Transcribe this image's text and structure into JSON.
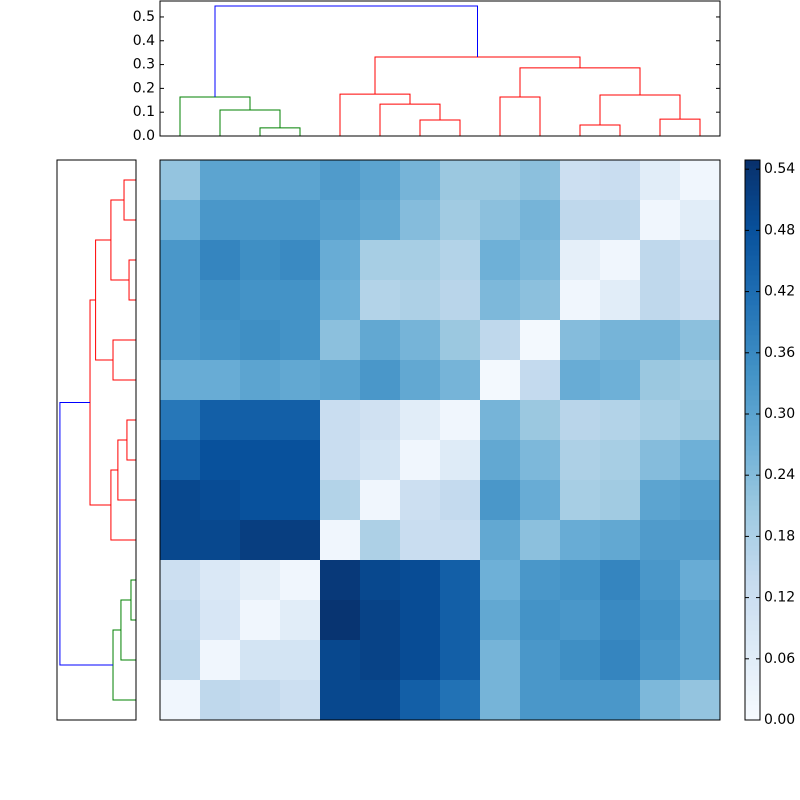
{
  "chart_data": [
    {
      "type": "heatmap",
      "colormap": "Blues",
      "clim": [
        0,
        0.549
      ],
      "cticks": [
        {
          "value": 0,
          "label": "0.00"
        },
        {
          "value": 0.06,
          "label": "0.06"
        },
        {
          "value": 0.12,
          "label": "0.12"
        },
        {
          "value": 0.18,
          "label": "0.18"
        },
        {
          "value": 0.24,
          "label": "0.24"
        },
        {
          "value": 0.3,
          "label": "0.30"
        },
        {
          "value": 0.36,
          "label": "0.36"
        },
        {
          "value": 0.42,
          "label": "0.42"
        },
        {
          "value": 0.48,
          "label": "0.48"
        },
        {
          "value": 0.54,
          "label": "0.54"
        }
      ],
      "matrix": [
        [
          0.22,
          0.3,
          0.3,
          0.3,
          0.32,
          0.3,
          0.26,
          0.21,
          0.21,
          0.23,
          0.12,
          0.13,
          0.06,
          0.02
        ],
        [
          0.27,
          0.33,
          0.33,
          0.33,
          0.31,
          0.29,
          0.24,
          0.2,
          0.23,
          0.26,
          0.15,
          0.15,
          0.02,
          0.06
        ],
        [
          0.33,
          0.37,
          0.35,
          0.36,
          0.28,
          0.19,
          0.19,
          0.17,
          0.27,
          0.25,
          0.05,
          0.02,
          0.15,
          0.12
        ],
        [
          0.33,
          0.35,
          0.34,
          0.34,
          0.27,
          0.17,
          0.18,
          0.16,
          0.25,
          0.23,
          0.02,
          0.06,
          0.15,
          0.13
        ],
        [
          0.33,
          0.34,
          0.35,
          0.34,
          0.23,
          0.29,
          0.26,
          0.21,
          0.15,
          0.01,
          0.24,
          0.26,
          0.26,
          0.23
        ],
        [
          0.28,
          0.28,
          0.3,
          0.29,
          0.3,
          0.33,
          0.29,
          0.26,
          0.01,
          0.14,
          0.28,
          0.27,
          0.21,
          0.2
        ],
        [
          0.4,
          0.45,
          0.45,
          0.45,
          0.13,
          0.11,
          0.06,
          0.02,
          0.26,
          0.21,
          0.16,
          0.17,
          0.19,
          0.21
        ],
        [
          0.45,
          0.48,
          0.48,
          0.48,
          0.13,
          0.1,
          0.02,
          0.07,
          0.29,
          0.25,
          0.18,
          0.19,
          0.24,
          0.27
        ],
        [
          0.5,
          0.49,
          0.48,
          0.48,
          0.17,
          0.02,
          0.12,
          0.14,
          0.33,
          0.28,
          0.19,
          0.2,
          0.3,
          0.31
        ],
        [
          0.5,
          0.5,
          0.52,
          0.52,
          0.02,
          0.18,
          0.13,
          0.13,
          0.29,
          0.23,
          0.28,
          0.29,
          0.32,
          0.32
        ],
        [
          0.12,
          0.08,
          0.05,
          0.02,
          0.53,
          0.5,
          0.49,
          0.45,
          0.27,
          0.33,
          0.34,
          0.37,
          0.33,
          0.28
        ],
        [
          0.14,
          0.09,
          0.02,
          0.06,
          0.54,
          0.51,
          0.49,
          0.45,
          0.29,
          0.34,
          0.33,
          0.36,
          0.34,
          0.3
        ],
        [
          0.15,
          0.02,
          0.1,
          0.1,
          0.5,
          0.51,
          0.49,
          0.45,
          0.26,
          0.33,
          0.35,
          0.37,
          0.33,
          0.3
        ],
        [
          0.02,
          0.15,
          0.14,
          0.12,
          0.5,
          0.5,
          0.45,
          0.41,
          0.26,
          0.33,
          0.33,
          0.33,
          0.25,
          0.22
        ]
      ]
    },
    {
      "type": "dendrogram",
      "orientation": "top",
      "xlim": [
        0,
        140
      ],
      "ylim": [
        0,
        0.567
      ],
      "yticks": [
        {
          "value": 0,
          "label": "0.0"
        },
        0.1,
        0.2,
        0.3,
        0.4,
        0.5
      ],
      "links": [
        {
          "icoord": [
            25,
            25,
            35,
            35
          ],
          "dcoord": [
            0,
            0.034,
            0.034,
            0
          ],
          "color": "#008000"
        },
        {
          "icoord": [
            15,
            15,
            30,
            30
          ],
          "dcoord": [
            0,
            0.109,
            0.109,
            0.034
          ],
          "color": "#008000"
        },
        {
          "icoord": [
            5,
            5,
            22.5,
            22.5
          ],
          "dcoord": [
            0,
            0.164,
            0.164,
            0.109
          ],
          "color": "#008000"
        },
        {
          "icoord": [
            65,
            65,
            75,
            75
          ],
          "dcoord": [
            0,
            0.067,
            0.067,
            0
          ],
          "color": "#ff0000"
        },
        {
          "icoord": [
            55,
            55,
            70,
            70
          ],
          "dcoord": [
            0,
            0.134,
            0.134,
            0.067
          ],
          "color": "#ff0000"
        },
        {
          "icoord": [
            45,
            45,
            62.5,
            62.5
          ],
          "dcoord": [
            0,
            0.176,
            0.176,
            0.134
          ],
          "color": "#ff0000"
        },
        {
          "icoord": [
            85,
            85,
            95,
            95
          ],
          "dcoord": [
            0,
            0.164,
            0.164,
            0
          ],
          "color": "#ff0000"
        },
        {
          "icoord": [
            105,
            105,
            115,
            115
          ],
          "dcoord": [
            0,
            0.046,
            0.046,
            0
          ],
          "color": "#ff0000"
        },
        {
          "icoord": [
            125,
            125,
            135,
            135
          ],
          "dcoord": [
            0,
            0.071,
            0.071,
            0
          ],
          "color": "#ff0000"
        },
        {
          "icoord": [
            110,
            110,
            130,
            130
          ],
          "dcoord": [
            0.046,
            0.172,
            0.172,
            0.071
          ],
          "color": "#ff0000"
        },
        {
          "icoord": [
            90,
            90,
            120,
            120
          ],
          "dcoord": [
            0.164,
            0.286,
            0.286,
            0.172
          ],
          "color": "#ff0000"
        },
        {
          "icoord": [
            53.75,
            53.75,
            105,
            105
          ],
          "dcoord": [
            0.176,
            0.332,
            0.332,
            0.286
          ],
          "color": "#ff0000"
        },
        {
          "icoord": [
            13.75,
            13.75,
            79.375,
            79.375
          ],
          "dcoord": [
            0.164,
            0.546,
            0.546,
            0.332
          ],
          "color": "#0000ff"
        }
      ]
    },
    {
      "type": "dendrogram",
      "orientation": "left",
      "xlim": [
        0.567,
        0
      ],
      "ylim": [
        140,
        0
      ],
      "links": [
        {
          "icoord": [
            5,
            5,
            15,
            15
          ],
          "dcoord": [
            0,
            0.086,
            0.086,
            0
          ],
          "color": "#ff0000"
        },
        {
          "icoord": [
            25,
            25,
            35,
            35
          ],
          "dcoord": [
            0,
            0.05,
            0.05,
            0
          ],
          "color": "#ff0000"
        },
        {
          "icoord": [
            10,
            10,
            30,
            30
          ],
          "dcoord": [
            0.086,
            0.18,
            0.18,
            0.05
          ],
          "color": "#ff0000"
        },
        {
          "icoord": [
            45,
            45,
            55,
            55
          ],
          "dcoord": [
            0,
            0.165,
            0.165,
            0
          ],
          "color": "#ff0000"
        },
        {
          "icoord": [
            20,
            20,
            50,
            50
          ],
          "dcoord": [
            0.18,
            0.29,
            0.29,
            0.165
          ],
          "color": "#ff0000"
        },
        {
          "icoord": [
            65,
            65,
            75,
            75
          ],
          "dcoord": [
            0,
            0.065,
            0.065,
            0
          ],
          "color": "#ff0000"
        },
        {
          "icoord": [
            70,
            70,
            85,
            85
          ],
          "dcoord": [
            0.065,
            0.13,
            0.13,
            0
          ],
          "color": "#ff0000"
        },
        {
          "icoord": [
            77.5,
            77.5,
            95,
            95
          ],
          "dcoord": [
            0.13,
            0.18,
            0.18,
            0
          ],
          "color": "#ff0000"
        },
        {
          "icoord": [
            35,
            35,
            86.25,
            86.25
          ],
          "dcoord": [
            0.29,
            0.33,
            0.33,
            0.18
          ],
          "color": "#ff0000"
        },
        {
          "icoord": [
            105,
            105,
            115,
            115
          ],
          "dcoord": [
            0,
            0.036,
            0.036,
            0
          ],
          "color": "#008000"
        },
        {
          "icoord": [
            110,
            110,
            125,
            125
          ],
          "dcoord": [
            0.036,
            0.108,
            0.108,
            0
          ],
          "color": "#008000"
        },
        {
          "icoord": [
            117.5,
            117.5,
            135,
            135
          ],
          "dcoord": [
            0.108,
            0.165,
            0.165,
            0
          ],
          "color": "#008000"
        },
        {
          "icoord": [
            60.625,
            60.625,
            126.25,
            126.25
          ],
          "dcoord": [
            0.33,
            0.546,
            0.546,
            0.165
          ],
          "color": "#0000ff"
        }
      ]
    }
  ]
}
